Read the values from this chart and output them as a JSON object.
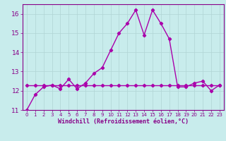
{
  "title": "",
  "xlabel": "Windchill (Refroidissement éolien,°C)",
  "bg_color": "#c8ecec",
  "grid_color": "#b0d4d4",
  "line_color": "#aa00aa",
  "x_hours": [
    0,
    1,
    2,
    3,
    4,
    5,
    6,
    7,
    8,
    9,
    10,
    11,
    12,
    13,
    14,
    15,
    16,
    17,
    18,
    19,
    20,
    21,
    22,
    23
  ],
  "temp_values": [
    11.0,
    11.8,
    12.2,
    12.3,
    12.1,
    12.6,
    12.1,
    12.4,
    12.9,
    13.2,
    14.1,
    15.0,
    15.5,
    16.2,
    14.9,
    16.2,
    15.5,
    14.7,
    12.2,
    12.2,
    12.4,
    12.5,
    12.0,
    12.3
  ],
  "flat_values": [
    12.3,
    12.3,
    12.3,
    12.3,
    12.3,
    12.3,
    12.3,
    12.3,
    12.3,
    12.3,
    12.3,
    12.3,
    12.3,
    12.3,
    12.3,
    12.3,
    12.3,
    12.3,
    12.3,
    12.3,
    12.3,
    12.3,
    12.3,
    12.3
  ],
  "ylim": [
    11,
    16.5
  ],
  "xlim": [
    -0.5,
    23.5
  ],
  "yticks": [
    11,
    12,
    13,
    14,
    15,
    16
  ],
  "xticks": [
    0,
    1,
    2,
    3,
    4,
    5,
    6,
    7,
    8,
    9,
    10,
    11,
    12,
    13,
    14,
    15,
    16,
    17,
    18,
    19,
    20,
    21,
    22,
    23
  ],
  "xlabel_fontsize": 6.0,
  "ytick_fontsize": 6.5,
  "xtick_fontsize": 5.0,
  "linewidth": 1.0,
  "marker": "D",
  "markersize": 2.2,
  "tick_color": "#880088",
  "spine_color": "#880088"
}
